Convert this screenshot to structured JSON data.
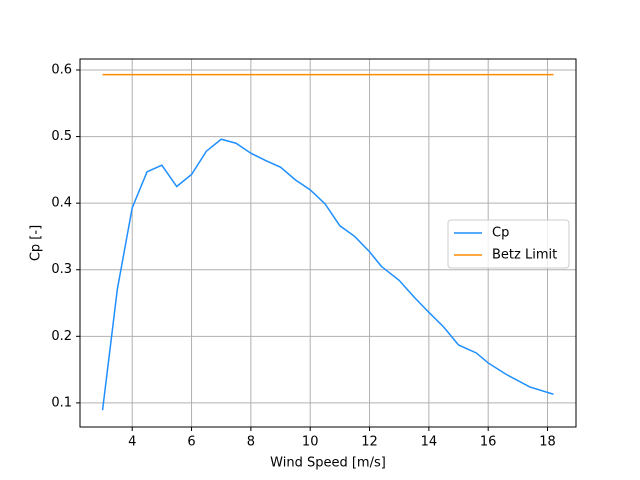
{
  "chart_data": {
    "type": "line",
    "xlabel": "Wind Speed [m/s]",
    "ylabel": "Cp [-]",
    "series": [
      {
        "name": "Cp",
        "color": "#1f8fff",
        "x": [
          3.0,
          3.5,
          4.0,
          4.5,
          5.0,
          5.5,
          6.0,
          6.5,
          7.0,
          7.5,
          8.0,
          8.5,
          9.0,
          9.5,
          10.0,
          10.5,
          11.0,
          11.5,
          12.0,
          12.4,
          13.0,
          13.5,
          14.0,
          14.5,
          15.0,
          15.6,
          16.0,
          16.6,
          17.4,
          18.2
        ],
        "values": [
          0.089,
          0.271,
          0.393,
          0.447,
          0.457,
          0.425,
          0.443,
          0.478,
          0.496,
          0.49,
          0.475,
          0.464,
          0.454,
          0.435,
          0.42,
          0.399,
          0.366,
          0.35,
          0.327,
          0.305,
          0.284,
          0.259,
          0.236,
          0.214,
          0.187,
          0.175,
          0.16,
          0.143,
          0.124,
          0.113
        ]
      },
      {
        "name": "Betz Limit",
        "color": "#ff8c00",
        "x": [
          3.0,
          18.2
        ],
        "values": [
          0.593,
          0.593
        ]
      }
    ],
    "xlim": [
      2.24,
      18.96
    ],
    "ylim": [
      0.0638,
      0.6165
    ],
    "xticks": [
      4,
      6,
      8,
      10,
      12,
      14,
      16,
      18
    ],
    "yticks": [
      0.1,
      0.2,
      0.3,
      0.4,
      0.5,
      0.6
    ],
    "grid": true,
    "legend": "center right"
  }
}
